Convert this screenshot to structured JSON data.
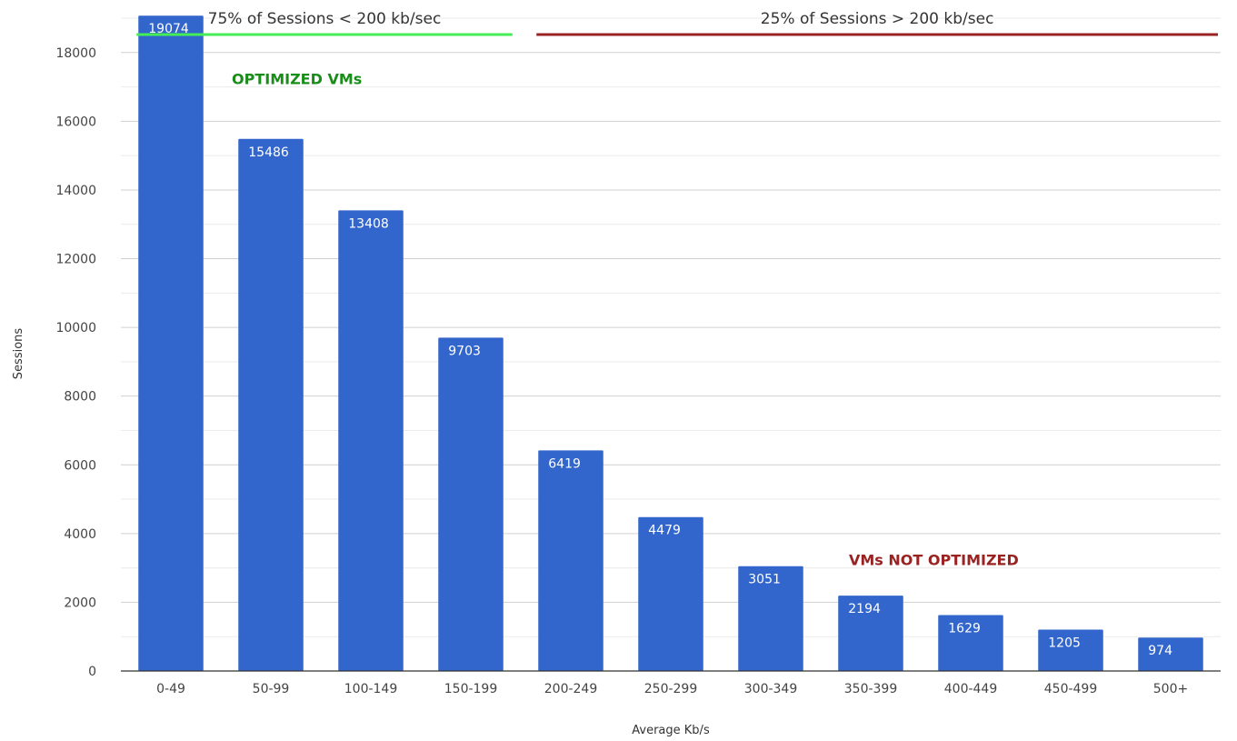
{
  "chart_data": {
    "type": "bar",
    "title": "",
    "xlabel": "Average Kb/s",
    "ylabel": "Sessions",
    "ylim": [
      0,
      19000
    ],
    "yticks": [
      0,
      2000,
      4000,
      6000,
      8000,
      10000,
      12000,
      14000,
      16000,
      18000
    ],
    "grid": true,
    "categories": [
      "0-49",
      "50-99",
      "100-149",
      "150-199",
      "200-249",
      "250-299",
      "300-349",
      "350-399",
      "400-449",
      "450-499",
      "500+"
    ],
    "series": [
      {
        "values": [
          19074,
          15486,
          13408,
          9703,
          6419,
          4479,
          3051,
          2194,
          1629,
          1205,
          974
        ],
        "color": "#3366cc"
      }
    ],
    "data_labels": [
      "19074",
      "15486",
      "13408",
      "9703",
      "6419",
      "4479",
      "3051",
      "2194",
      "1629",
      "1205",
      "974"
    ],
    "range_annotations": [
      {
        "text": "75% of Sessions < 200 kb/sec",
        "from_category": "0-49",
        "to_category": "150-199",
        "color": "#44ee55"
      },
      {
        "text": "25% of Sessions > 200 kb/sec",
        "from_category": "200-249",
        "to_category": "500+",
        "color": "#992222"
      }
    ],
    "annotations": [
      {
        "text": "OPTIMIZED VMs",
        "color": "#1a8c1a",
        "near_category": "50-99",
        "at_value": 17500
      },
      {
        "text": "VMs NOT OPTIMIZED",
        "color": "#992222",
        "near_category": "400-449",
        "at_value": 3500
      }
    ]
  }
}
